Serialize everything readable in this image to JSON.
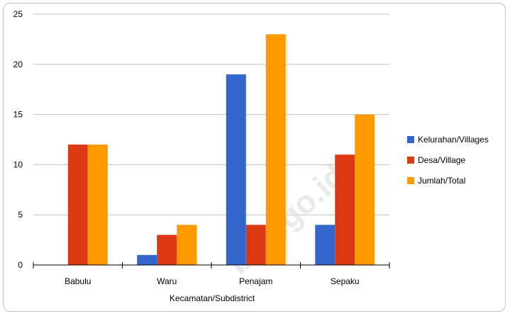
{
  "watermark": "bps.go.id",
  "chart_data": {
    "type": "bar",
    "title": "",
    "xlabel": "Kecamatan/Subdistrict",
    "ylabel": "",
    "categories": [
      "Babulu",
      "Waru",
      "Penajam",
      "Sepaku"
    ],
    "ylim": [
      0,
      25
    ],
    "yticks": [
      0,
      5,
      10,
      15,
      20,
      25
    ],
    "grid": true,
    "legend_position": "right",
    "series": [
      {
        "name": "Kelurahan/Villages",
        "color": "#3366cc",
        "values": [
          0,
          1,
          19,
          4
        ]
      },
      {
        "name": "Desa/Village",
        "color": "#dc3912",
        "values": [
          12,
          3,
          4,
          11
        ]
      },
      {
        "name": "Jumlah/Total",
        "color": "#ff9900",
        "values": [
          12,
          4,
          23,
          15
        ]
      }
    ]
  }
}
